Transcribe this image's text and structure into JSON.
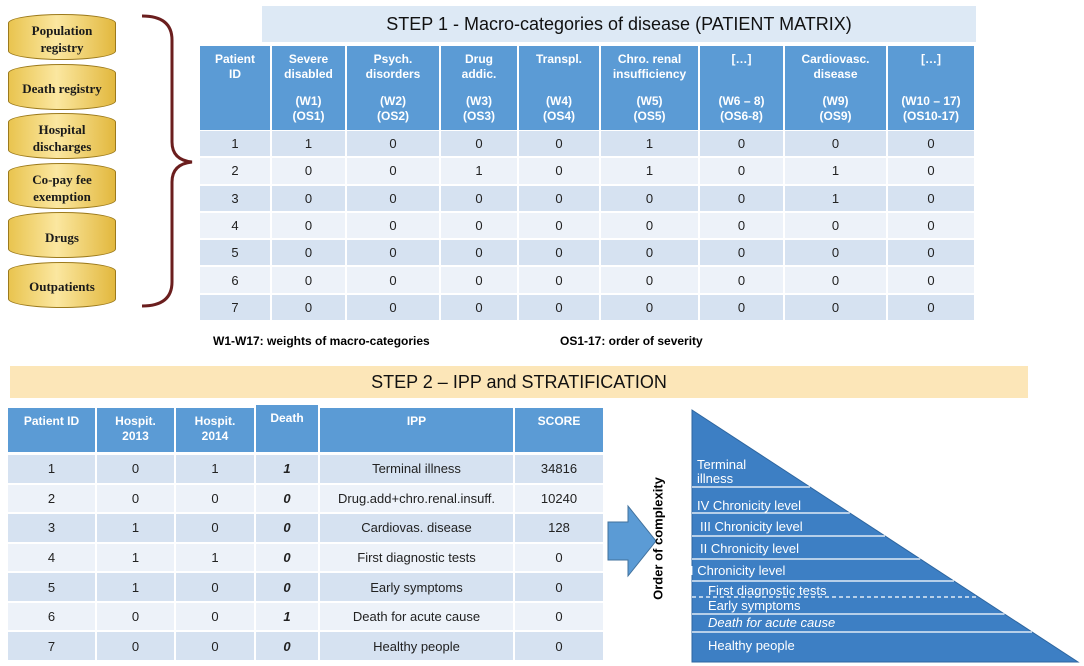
{
  "sources": [
    "Population registry",
    "Death registry",
    "Hospital discharges",
    "Co-pay fee exemption",
    "Drugs",
    "Outpatients"
  ],
  "step1": {
    "title": "STEP 1 - Macro-categories of disease (PATIENT MATRIX)",
    "headers": [
      {
        "name": [
          "Patient",
          "ID"
        ]
      },
      {
        "name": [
          "Severe",
          "disabled"
        ],
        "weight": "(W1)",
        "order": "(OS1)"
      },
      {
        "name": [
          "Psych.",
          "disorders"
        ],
        "weight": "(W2)",
        "order": "(OS2)"
      },
      {
        "name": [
          "Drug",
          "addic."
        ],
        "weight": "(W3)",
        "order": "(OS3)"
      },
      {
        "name": [
          "Transpl."
        ],
        "weight": "(W4)",
        "order": "(OS4)"
      },
      {
        "name": [
          "Chro. renal",
          "insufficiency"
        ],
        "weight": "(W5)",
        "order": "(OS5)"
      },
      {
        "name": [
          "[…]"
        ],
        "weight": "(W6 – 8)",
        "order": "(OS6-8)"
      },
      {
        "name": [
          "Cardiovasc.",
          "disease"
        ],
        "weight": "(W9)",
        "order": "(OS9)"
      },
      {
        "name": [
          "[…]"
        ],
        "weight": "(W10 – 17)",
        "order": "(OS10-17)"
      }
    ],
    "rows": [
      [
        1,
        1,
        0,
        0,
        0,
        1,
        0,
        0,
        0
      ],
      [
        2,
        0,
        0,
        1,
        0,
        1,
        0,
        1,
        0
      ],
      [
        3,
        0,
        0,
        0,
        0,
        0,
        0,
        1,
        0
      ],
      [
        4,
        0,
        0,
        0,
        0,
        0,
        0,
        0,
        0
      ],
      [
        5,
        0,
        0,
        0,
        0,
        0,
        0,
        0,
        0
      ],
      [
        6,
        0,
        0,
        0,
        0,
        0,
        0,
        0,
        0
      ],
      [
        7,
        0,
        0,
        0,
        0,
        0,
        0,
        0,
        0
      ]
    ],
    "notes": [
      "W1-W17: weights of macro-categories",
      "OS1-17: order of severity"
    ]
  },
  "step2": {
    "title": "STEP 2 – IPP and STRATIFICATION",
    "headers": [
      [
        "Patient ID"
      ],
      [
        "Hospit.",
        "2013"
      ],
      [
        "Hospit.",
        "2014"
      ],
      [
        "Death"
      ],
      [
        "IPP"
      ],
      [
        "SCORE"
      ]
    ],
    "rows": [
      [
        1,
        0,
        1,
        1,
        "Terminal illness",
        34816
      ],
      [
        2,
        0,
        0,
        0,
        "Drug.add+chro.renal.insuff.",
        10240
      ],
      [
        3,
        1,
        0,
        0,
        "Cardiovas. disease",
        128
      ],
      [
        4,
        1,
        1,
        0,
        "First diagnostic tests",
        0
      ],
      [
        5,
        1,
        0,
        0,
        "Early symptoms",
        0
      ],
      [
        6,
        0,
        0,
        1,
        "Death for acute cause",
        0
      ],
      [
        7,
        0,
        0,
        0,
        "Healthy people",
        0
      ]
    ]
  },
  "pyramid": {
    "axis_label": "Order of complexity",
    "levels": [
      "Terminal illness",
      "IV Chronicity level",
      "III Chronicity level",
      "II Chronicity level",
      "I Chronicity level",
      "First diagnostic tests",
      "Early symptoms",
      "Death for acute cause",
      "Healthy people"
    ]
  }
}
